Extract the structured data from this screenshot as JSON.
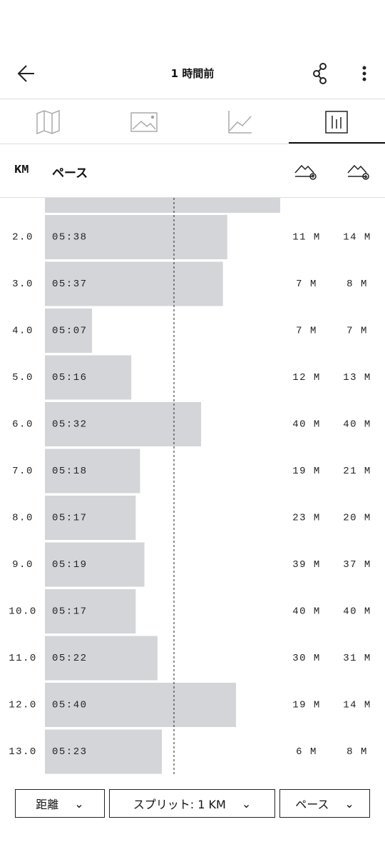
{
  "header": {
    "title": "1 時間前"
  },
  "table": {
    "columns": [
      "KM",
      "ペース"
    ],
    "rows": [
      [
        "2.0",
        "05:38",
        "11 M",
        "14 M"
      ],
      [
        "3.0",
        "05:37",
        "7 M",
        "8 M"
      ],
      [
        "4.0",
        "05:07",
        "7 M",
        "7 M"
      ],
      [
        "5.0",
        "05:16",
        "12 M",
        "13 M"
      ],
      [
        "6.0",
        "05:32",
        "40 M",
        "40 M"
      ],
      [
        "7.0",
        "05:18",
        "19 M",
        "21 M"
      ],
      [
        "8.0",
        "05:17",
        "23 M",
        "20 M"
      ],
      [
        "9.0",
        "05:19",
        "39 M",
        "37 M"
      ],
      [
        "10.0",
        "05:17",
        "40 M",
        "40 M"
      ],
      [
        "11.0",
        "05:22",
        "30 M",
        "31 M"
      ],
      [
        "12.0",
        "05:40",
        "19 M",
        "14 M"
      ],
      [
        "13.0",
        "05:23",
        "6 M",
        "8 M"
      ]
    ]
  },
  "footer": {
    "buttons": [
      "距離",
      "スプリット: 1 KM",
      "ペース"
    ]
  }
}
